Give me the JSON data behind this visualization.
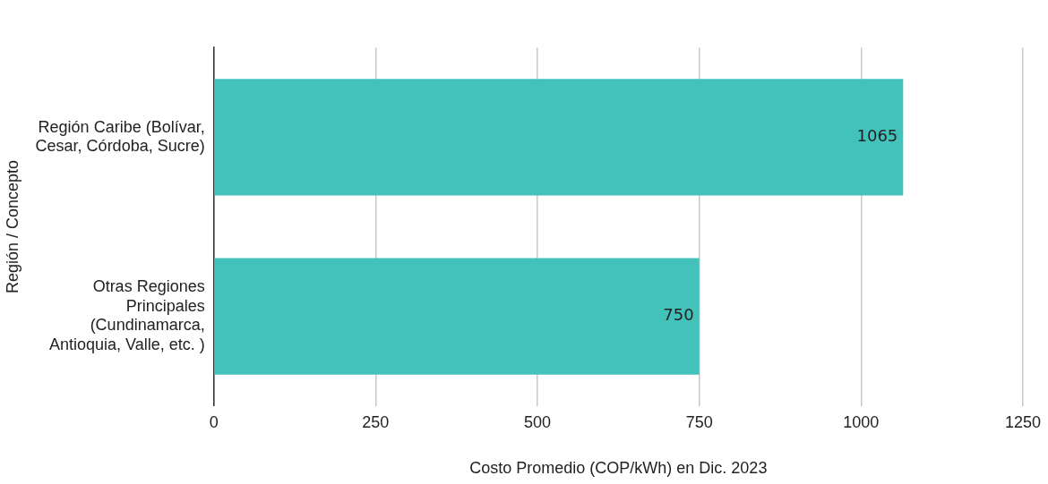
{
  "chart_data": {
    "type": "bar",
    "orientation": "horizontal",
    "xlabel": "Costo Promedio (COP/kWh) en Dic. 2023",
    "ylabel": "Región / Concepto",
    "categories": [
      "Región Caribe (Bolívar, Cesar, Córdoba, Sucre)",
      "Otras Regiones Principales (Cundinamarca, Antioquia, Valle, etc. )"
    ],
    "values": [
      1065,
      750
    ],
    "color": "#43c2bb",
    "xlim": [
      0,
      1250
    ],
    "xticks": [
      0,
      250,
      500,
      750,
      1000,
      1250
    ],
    "grid": "x",
    "data_labels": true,
    "legend": false
  }
}
